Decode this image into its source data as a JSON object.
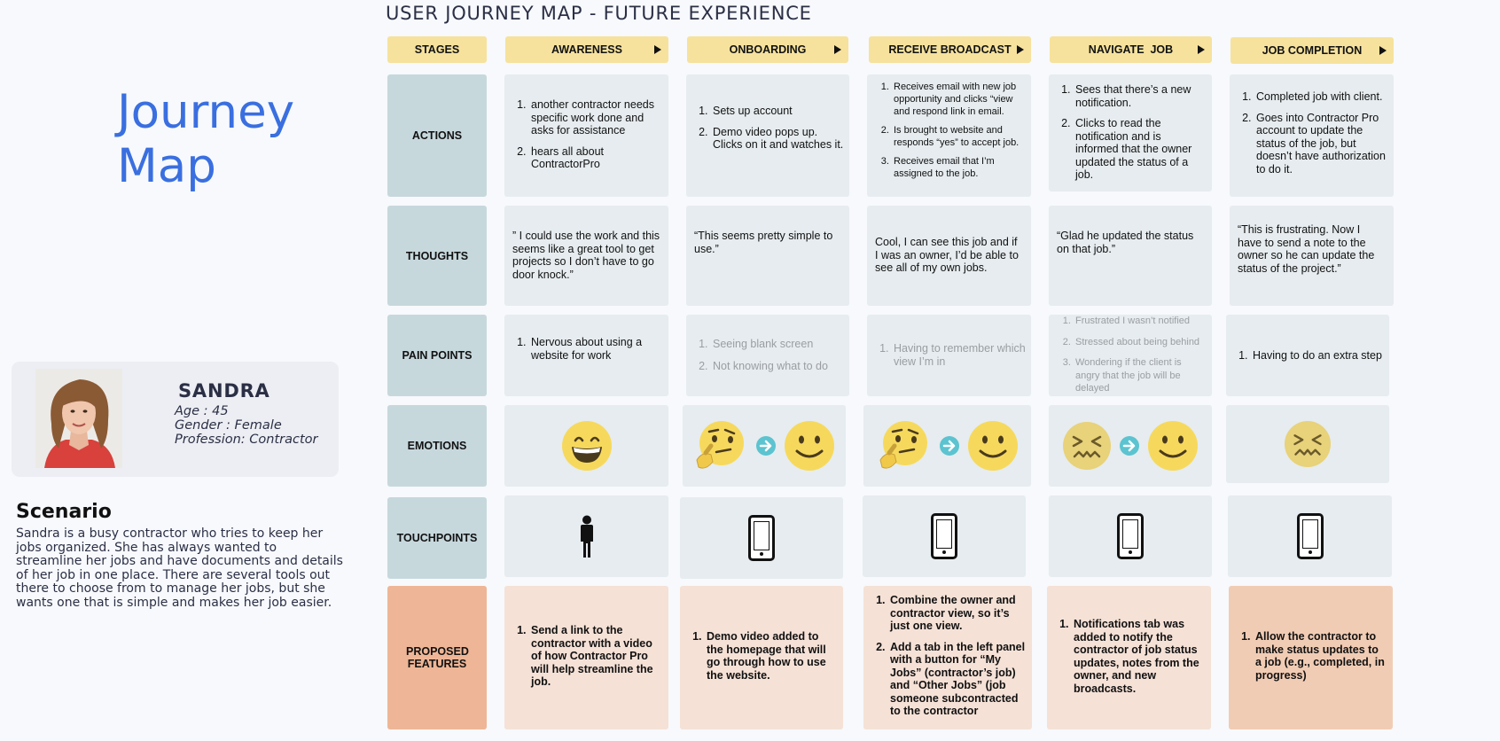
{
  "title": "USER JOURNEY MAP - FUTURE EXPERIENCE",
  "brand": {
    "line1": "Journey",
    "line2": "Map"
  },
  "persona": {
    "name": "SANDRA",
    "age": "Age : 45",
    "gender": "Gender : Female",
    "profession": "Profession: Contractor"
  },
  "scenario": {
    "title": "Scenario",
    "text": "Sandra is a busy contractor who tries to keep her jobs organized.  She has always wanted to streamline her jobs and have documents and details of her job in one place.  There are several tools out there to choose from to manage her jobs, but she wants one that is simple and makes her job easier."
  },
  "stages": {
    "header": "STAGES",
    "list": [
      "AWARENESS",
      "ONBOARDING",
      "RECEIVE BROADCAST",
      "NAVIGATE  JOB",
      "JOB COMPLETION"
    ]
  },
  "rows": {
    "actions": "ACTIONS",
    "thoughts": "THOUGHTS",
    "pain": "PAIN POINTS",
    "emotions": "EMOTIONS",
    "touch": "TOUCHPOINTS",
    "features": "PROPOSED FEATURES"
  },
  "actions": [
    [
      "another contractor needs specific work done and asks for assistance",
      "hears all about ContractorPro"
    ],
    [
      "Sets up account",
      "Demo video pops up.  Clicks on it and watches it."
    ],
    [
      "Receives email with new job opportunity and clicks “view and respond link in email.",
      "Is brought to website and responds “yes” to accept job.",
      "Receives email that I’m assigned to the job."
    ],
    [
      "Sees that there’s a new notification.",
      "Clicks to read the notification and is informed that the owner updated the status of a job."
    ],
    [
      "Completed job with client.",
      "Goes into Contractor Pro account to update the status of the job, but doesn’t have authorization to do it."
    ]
  ],
  "thoughts": [
    "” I could use the work and this seems like a great tool to get projects so I don’t have to go door knock.”",
    "“This seems pretty simple to use.”",
    "Cool, I can see this job and if I was an owner, I’d be able to see all of my own jobs.",
    "“Glad he updated the status on that job.”",
    "“This is frustrating.  Now I have to send a note to the owner so he can update the status of the project.”"
  ],
  "pain": [
    [
      "Nervous about using a website for work"
    ],
    [
      "Seeing blank screen",
      "Not knowing what to do"
    ],
    [
      "Having to remember which view I’m in"
    ],
    [
      "Frustrated I wasn’t notified",
      "Stressed about being behind",
      "Wondering if the client is angry that the job will be delayed"
    ],
    [
      "Having to do an extra step"
    ]
  ],
  "emotions": [
    [
      "grinning"
    ],
    [
      "thinking",
      "smile"
    ],
    [
      "thinking",
      "smile"
    ],
    [
      "confounded",
      "smile"
    ],
    [
      "confounded"
    ]
  ],
  "touchpoints": [
    "person-icon",
    "phone-icon",
    "phone-icon",
    "phone-icon",
    "phone-icon"
  ],
  "features": [
    [
      "Send a link to the contractor with a video of how Contractor Pro will help streamline the job."
    ],
    [
      "Demo video added to the homepage that will go through how to use the website."
    ],
    [
      "Combine the owner and contractor view, so it’s just one view.",
      "Add a tab in the left panel with a button for “My Jobs” (contractor’s job) and “Other Jobs” (job someone subcontracted to the contractor"
    ],
    [
      "Notifications tab was added to notify the contractor of job status updates, notes from the owner, and new broadcasts."
    ],
    [
      "Allow the contractor to make status updates to a job (e.g., completed, in progress)"
    ]
  ],
  "colors": {
    "stage": "#f6e29d",
    "label": "#c7d8dd",
    "feature_label": "#eeb696",
    "cell": "#e6ecef",
    "feature_cell": "#f5e1d6",
    "accent": "#3a6fe0"
  }
}
